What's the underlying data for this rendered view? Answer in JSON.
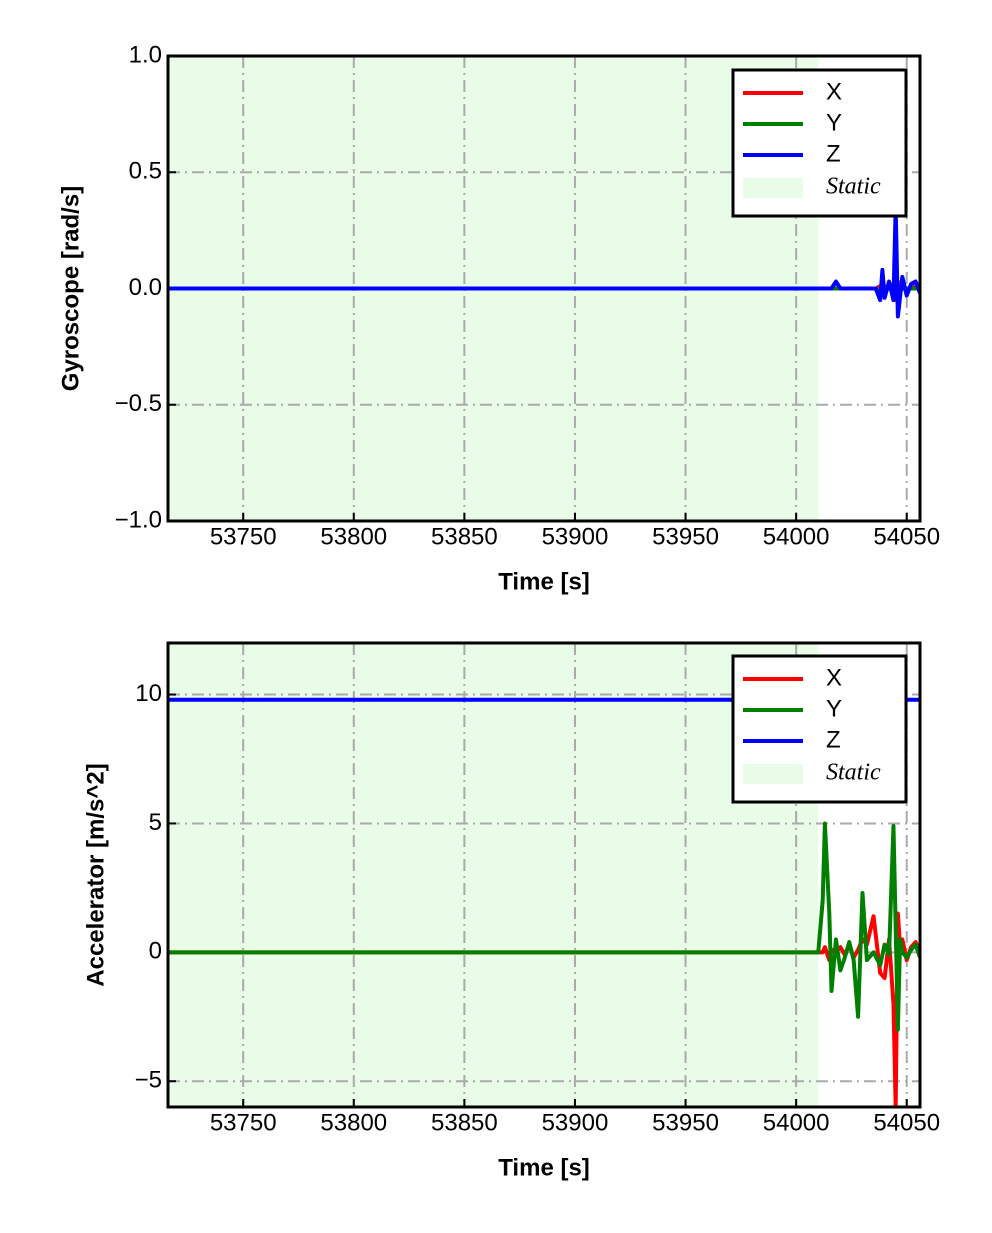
{
  "chart_data": [
    {
      "type": "line",
      "xlabel": "Time [s]",
      "ylabel": "Gyroscope [rad/s]",
      "x": [
        53716,
        53750,
        53800,
        53850,
        53900,
        53950,
        54000,
        54010,
        54016,
        54018,
        54020,
        54030,
        54036,
        54038,
        54039,
        54040,
        54042,
        54044,
        54045,
        54046,
        54048,
        54050,
        54052,
        54054,
        54056
      ],
      "series": [
        {
          "name": "X",
          "color": "#ff0000",
          "values": [
            0,
            0,
            0,
            0,
            0,
            0,
            0,
            0,
            0,
            0,
            0,
            0,
            0,
            0.01,
            -0.02,
            0.01,
            0,
            0.02,
            -0.05,
            0.03,
            0,
            0,
            0,
            0.01,
            0
          ]
        },
        {
          "name": "Y",
          "color": "#008000",
          "values": [
            0,
            0,
            0,
            0,
            0,
            0,
            0,
            0,
            0,
            0,
            0,
            0,
            0,
            -0.01,
            0.02,
            0,
            0.01,
            -0.01,
            0.02,
            -0.02,
            0,
            0,
            0,
            0,
            0
          ]
        },
        {
          "name": "Z",
          "color": "#0000ff",
          "values": [
            0,
            0,
            0,
            0,
            0,
            0,
            0,
            0,
            0,
            0.03,
            0,
            0,
            0,
            -0.05,
            0.08,
            -0.04,
            0.03,
            -0.05,
            0.35,
            -0.12,
            0.05,
            -0.03,
            0.02,
            0.03,
            -0.02
          ]
        }
      ],
      "spans": [
        {
          "name": "Static",
          "x": [
            53716,
            54010
          ],
          "color": "#e8fce8"
        }
      ],
      "xlim": [
        53716,
        54056
      ],
      "xticks": [
        53750,
        53800,
        53850,
        53900,
        53950,
        54000,
        54050
      ],
      "ylim": [
        -1,
        1
      ],
      "yticks": [
        {
          "value": -1,
          "label": "−1.0"
        },
        {
          "value": -0.5,
          "label": "−0.5"
        },
        {
          "value": 0,
          "label": "0.0"
        },
        {
          "value": 0.5,
          "label": "0.5"
        },
        {
          "value": 1,
          "label": "1.0"
        }
      ],
      "grid": true,
      "legend": "upper right"
    },
    {
      "type": "line",
      "xlabel": "Time [s]",
      "ylabel": "Accelerator [m/s^2]",
      "x": [
        53716,
        53750,
        53800,
        53850,
        53900,
        53950,
        54000,
        54010,
        54012,
        54013,
        54015,
        54016,
        54018,
        54020,
        54022,
        54024,
        54026,
        54028,
        54030,
        54032,
        54035,
        54038,
        54040,
        54042,
        54044,
        54045,
        54046,
        54047,
        54048,
        54050,
        54052,
        54054,
        54056
      ],
      "series": [
        {
          "name": "X",
          "color": "#ff0000",
          "values": [
            0,
            0,
            0,
            0,
            0,
            0,
            0,
            0,
            0,
            0.2,
            -0.3,
            0.1,
            0,
            0.2,
            -0.1,
            0.3,
            -0.2,
            0.1,
            0.5,
            0.3,
            1.4,
            -0.8,
            -1,
            0.5,
            -2,
            -6,
            1.5,
            0.2,
            0.5,
            -0.3,
            0.2,
            0.4,
            0
          ]
        },
        {
          "name": "Y",
          "color": "#008000",
          "values": [
            0,
            0,
            0,
            0,
            0,
            0,
            0,
            0,
            2,
            5,
            1.5,
            -1.5,
            0.5,
            -0.7,
            -0.2,
            0.4,
            -0.3,
            -2.5,
            2.3,
            -0.3,
            0,
            -0.5,
            0.3,
            -0.1,
            4.9,
            1,
            -3,
            0.5,
            0,
            -0.2,
            0.1,
            0.3,
            -0.2
          ]
        },
        {
          "name": "Z",
          "color": "#0000ff",
          "values": [
            9.8,
            9.8,
            9.8,
            9.8,
            9.8,
            9.8,
            9.8,
            9.8,
            9.8,
            9.8,
            9.8,
            9.8,
            9.8,
            9.8,
            9.8,
            9.8,
            9.8,
            9.8,
            9.8,
            9.8,
            9.8,
            9.8,
            9.8,
            9.8,
            9.8,
            9.8,
            9.8,
            9.8,
            9.8,
            9.8,
            9.8,
            9.8,
            9.8
          ]
        }
      ],
      "spans": [
        {
          "name": "Static",
          "x": [
            53716,
            54010
          ],
          "color": "#e8fce8"
        }
      ],
      "xlim": [
        53716,
        54056
      ],
      "xticks": [
        53750,
        53800,
        53850,
        53900,
        53950,
        54000,
        54050
      ],
      "ylim": [
        -6,
        12
      ],
      "yticks": [
        {
          "value": -5,
          "label": "−5"
        },
        0,
        5,
        10
      ],
      "grid": true,
      "legend": "upper right"
    }
  ]
}
